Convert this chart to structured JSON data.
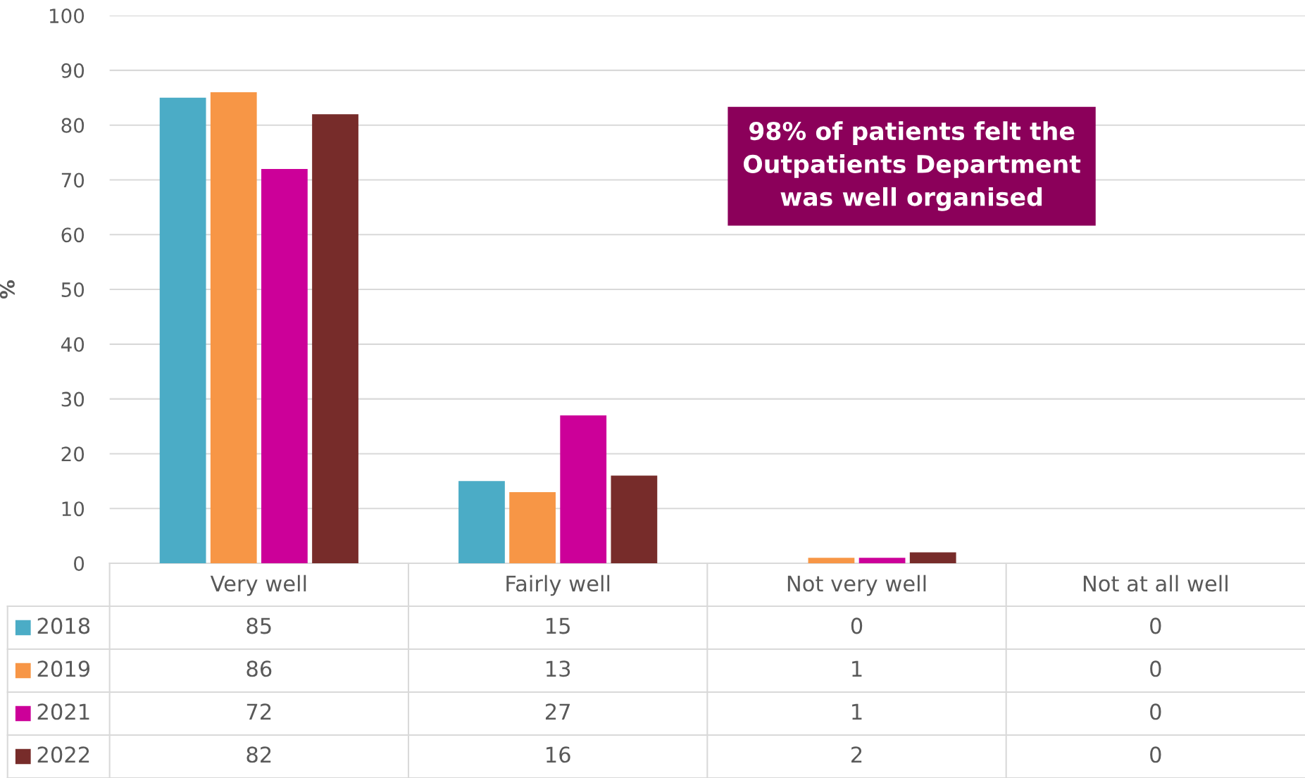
{
  "chart_data": {
    "type": "bar",
    "ylabel": "%",
    "categories": [
      "Very well",
      "Fairly well",
      "Not very well",
      "Not at all well"
    ],
    "series": [
      {
        "name": "2018",
        "color": "#4bacc6",
        "values": [
          85,
          15,
          0,
          0
        ]
      },
      {
        "name": "2019",
        "color": "#f79646",
        "values": [
          86,
          13,
          1,
          0
        ]
      },
      {
        "name": "2021",
        "color": "#cc0099",
        "values": [
          72,
          27,
          1,
          0
        ]
      },
      {
        "name": "2022",
        "color": "#772c2a",
        "values": [
          82,
          16,
          2,
          0
        ]
      }
    ],
    "ylim": [
      0,
      100
    ],
    "yticks": [
      0,
      10,
      20,
      30,
      40,
      50,
      60,
      70,
      80,
      90,
      100
    ],
    "grid": "y",
    "data_labels": true,
    "legend": "bottom",
    "annotations": [
      "98% of patients felt the\nOutpatients Department\nwas well organised"
    ]
  }
}
